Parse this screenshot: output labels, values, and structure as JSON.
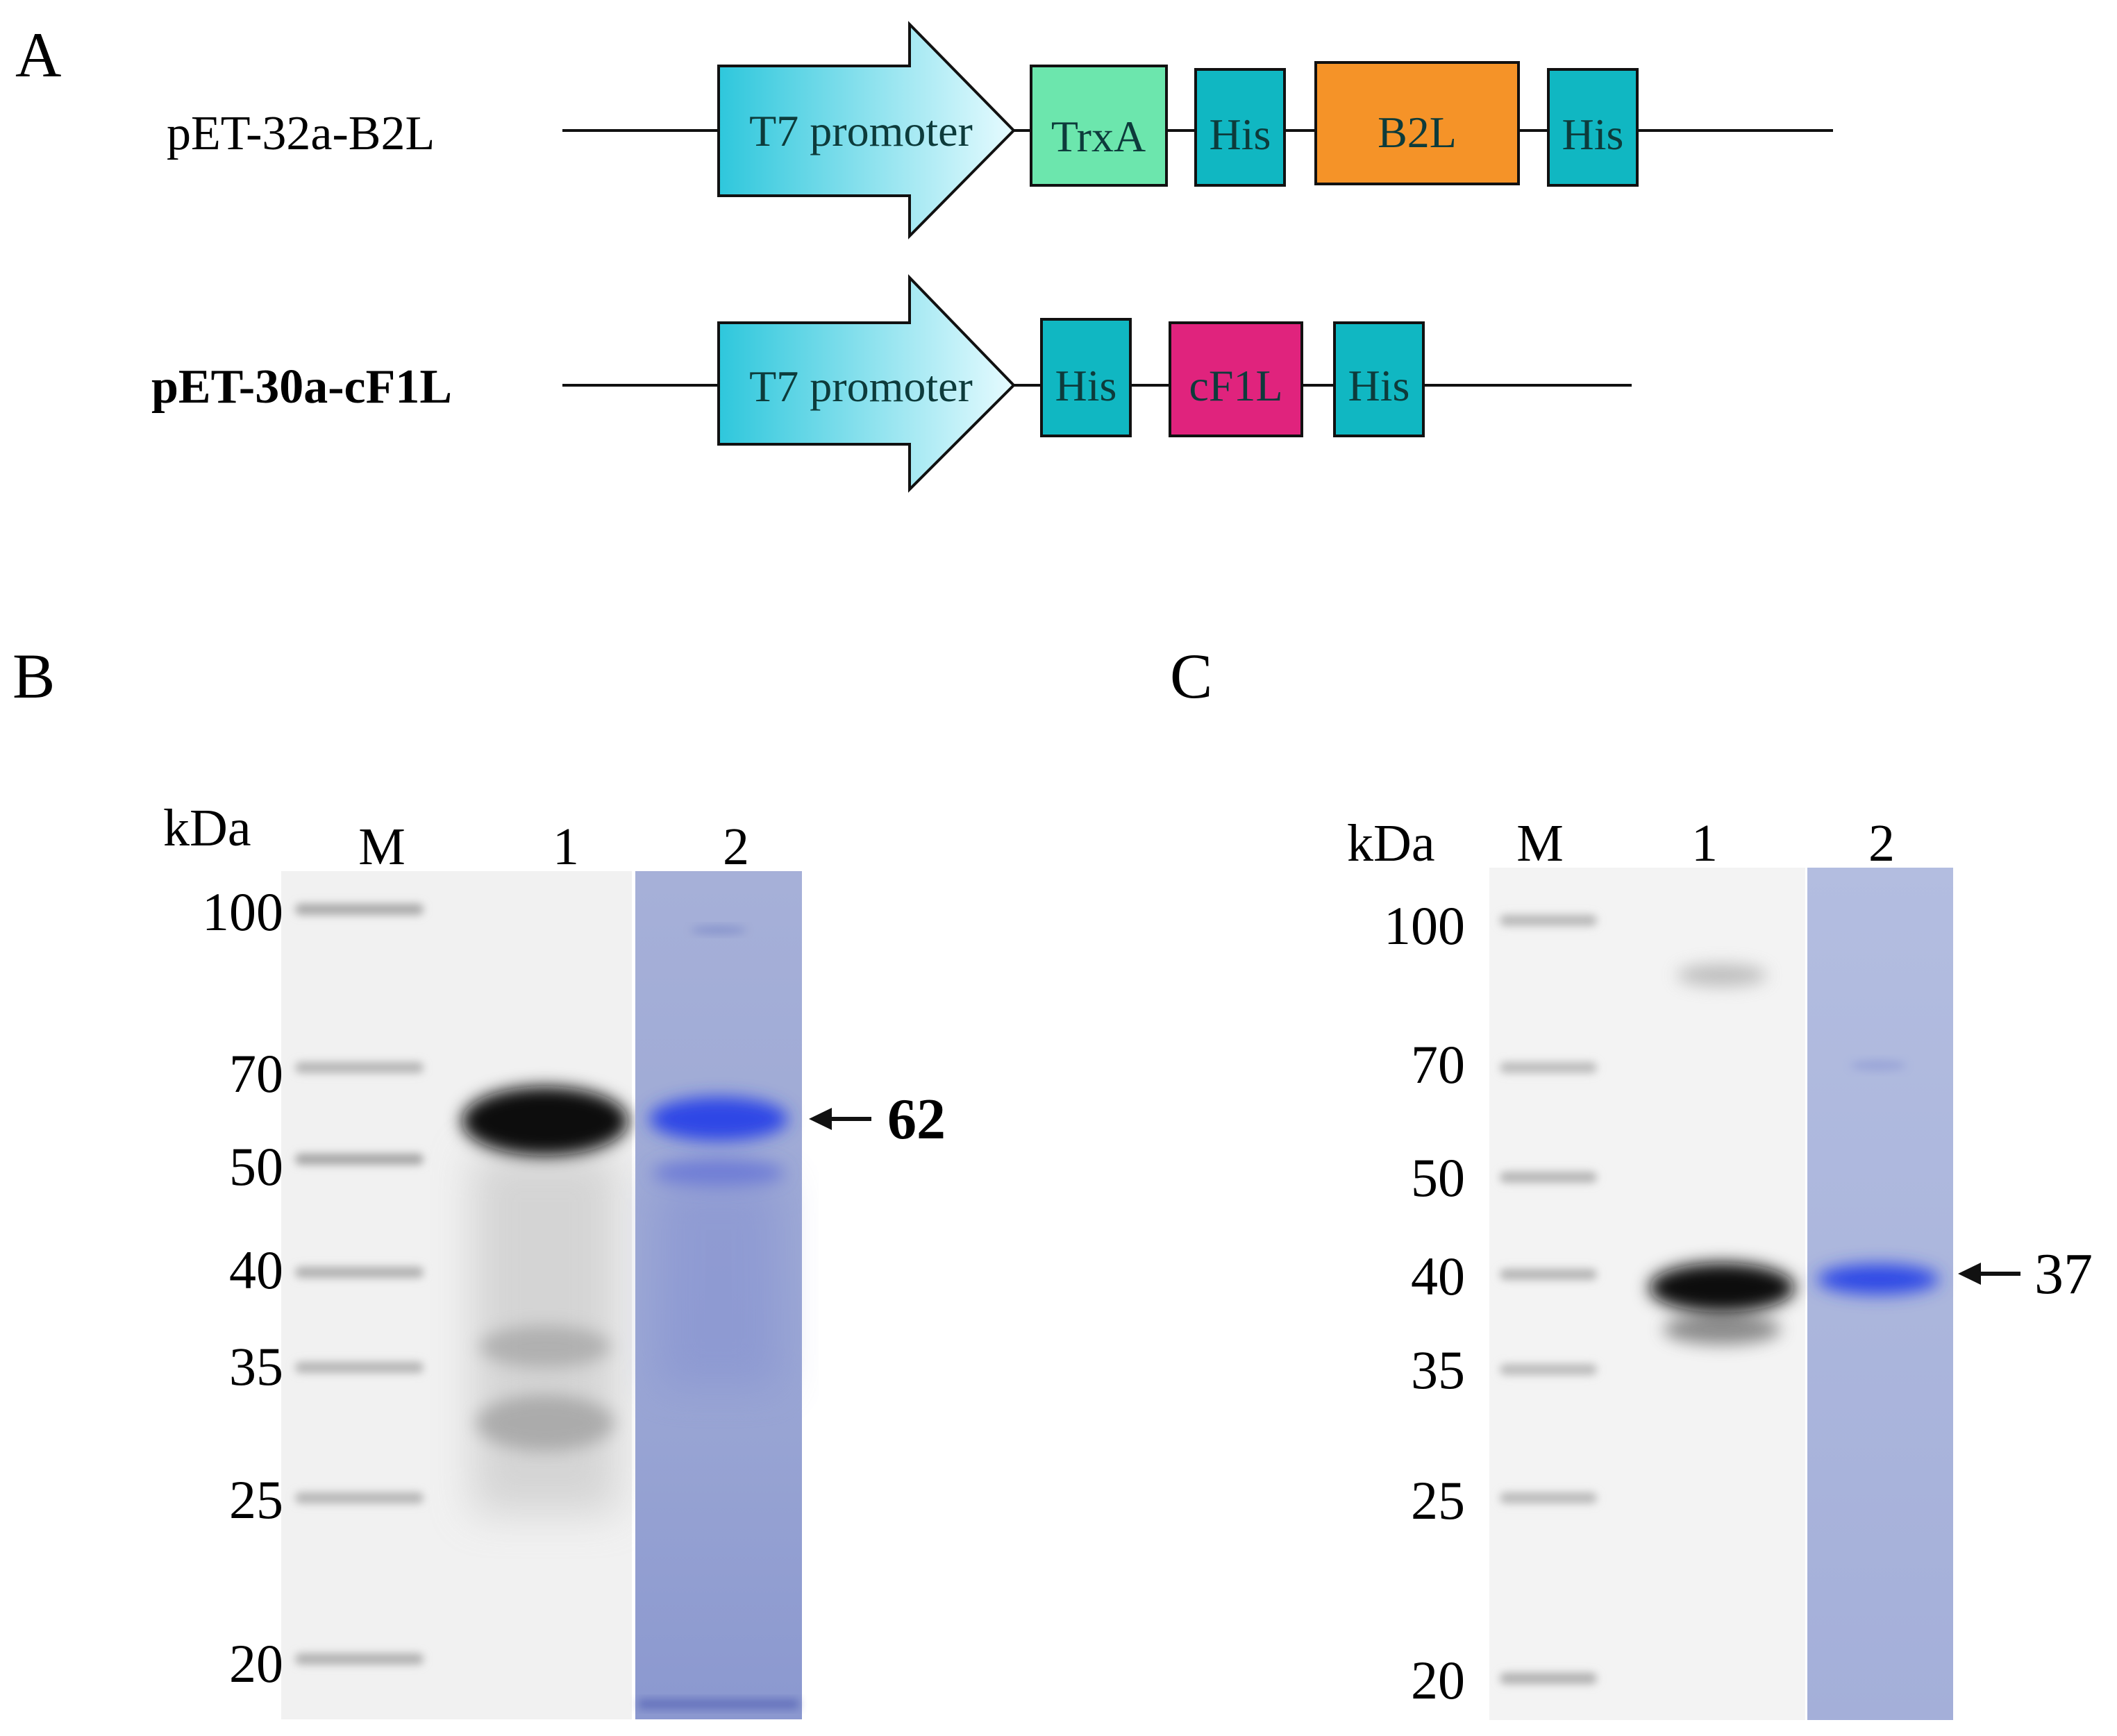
{
  "panels": {
    "a": {
      "letter": "A",
      "constructs": [
        {
          "name": "pET-32a-B2L",
          "elements": [
            {
              "label": "T7 promoter",
              "shape": "arrow",
              "color": "#37c9de"
            },
            {
              "label": "TrxA",
              "shape": "box",
              "color": "#6ce6ad"
            },
            {
              "label": "His",
              "shape": "box",
              "color": "#10b7c2"
            },
            {
              "label": "B2L",
              "shape": "box",
              "color": "#f59328"
            },
            {
              "label": "His",
              "shape": "box",
              "color": "#10b7c2"
            }
          ]
        },
        {
          "name": "pET-30a-cF1L",
          "elements": [
            {
              "label": "T7 promoter",
              "shape": "arrow",
              "color": "#37c9de"
            },
            {
              "label": "His",
              "shape": "box",
              "color": "#10b7c2"
            },
            {
              "label": "cF1L",
              "shape": "box",
              "color": "#e0237d"
            },
            {
              "label": "His",
              "shape": "box",
              "color": "#10b7c2"
            }
          ]
        }
      ]
    },
    "b": {
      "letter": "B",
      "unit": "kDa",
      "lanes": [
        "M",
        "1",
        "2"
      ],
      "markers": [
        "100",
        "70",
        "50",
        "40",
        "35",
        "25",
        "20"
      ],
      "band_size": "62"
    },
    "c": {
      "letter": "C",
      "unit": "kDa",
      "lanes": [
        "M",
        "1",
        "2"
      ],
      "markers": [
        "100",
        "70",
        "50",
        "40",
        "35",
        "25",
        "20"
      ],
      "band_size": "37"
    }
  },
  "colors": {
    "line": "#111111",
    "gel_background": "#f1f1f1",
    "coomassie_lane": "#a9b2d6",
    "coomassie_band": "#3a4fe0",
    "western_band": "#111111"
  }
}
